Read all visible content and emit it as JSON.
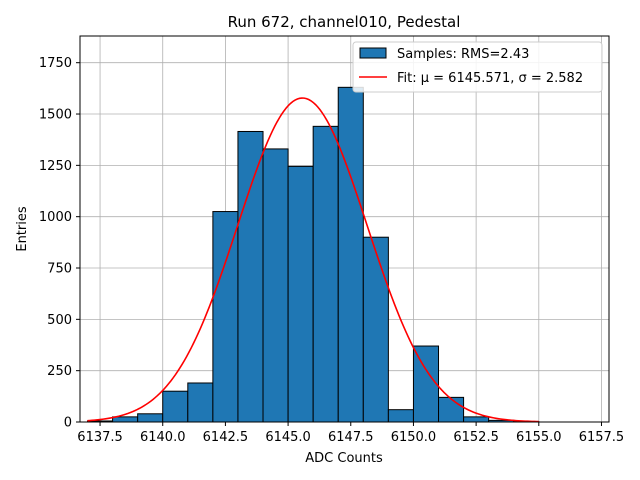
{
  "chart_data": {
    "type": "bar",
    "title": "Run 672, channel010, Pedestal",
    "xlabel": "ADC Counts",
    "ylabel": "Entries",
    "xlim": [
      6136.7,
      6157.8
    ],
    "ylim": [
      0,
      1880
    ],
    "xticks": [
      6137.5,
      6140.0,
      6142.5,
      6145.0,
      6147.5,
      6150.0,
      6152.5,
      6155.0,
      6157.5
    ],
    "xtick_labels": [
      "6137.5",
      "6140.0",
      "6142.5",
      "6145.0",
      "6147.5",
      "6150.0",
      "6152.5",
      "6155.0",
      "6157.5"
    ],
    "yticks": [
      0,
      250,
      500,
      750,
      1000,
      1250,
      1500,
      1750
    ],
    "ytick_labels": [
      "0",
      "250",
      "500",
      "750",
      "1000",
      "1250",
      "1500",
      "1750"
    ],
    "grid": true,
    "legend_position": "top-right",
    "bin_width": 1.0,
    "histogram": {
      "name": "Samples: RMS=2.43",
      "color": "#1f77b4",
      "edge_color": "#000000",
      "bin_left_edges": [
        6137,
        6138,
        6139,
        6140,
        6141,
        6142,
        6143,
        6144,
        6145,
        6146,
        6147,
        6148,
        6149,
        6150,
        6151,
        6152,
        6153,
        6154
      ],
      "values": [
        5,
        25,
        40,
        150,
        190,
        1025,
        1415,
        1330,
        1245,
        1440,
        1630,
        900,
        60,
        370,
        120,
        25,
        8,
        2
      ]
    },
    "fit": {
      "name": "Fit: μ = 6145.571, σ = 2.582",
      "color": "#ff0000",
      "mu": 6145.571,
      "sigma": 2.582,
      "amplitude": 1578,
      "x_range": [
        6137,
        6155
      ]
    }
  }
}
